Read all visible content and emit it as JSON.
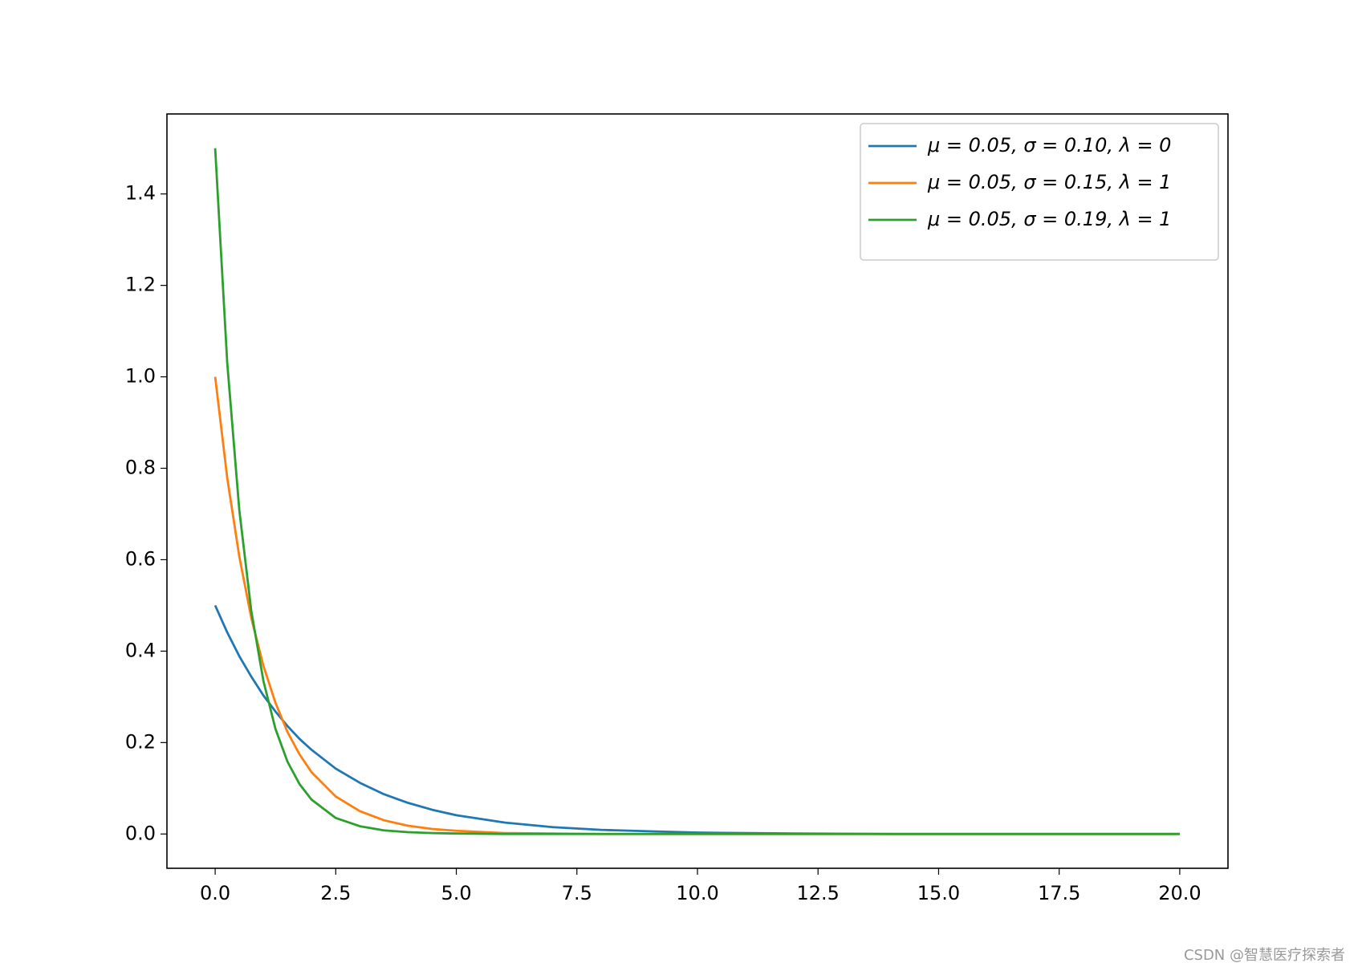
{
  "chart_data": {
    "type": "line",
    "x": [
      0,
      0.25,
      0.5,
      0.75,
      1,
      1.25,
      1.5,
      1.75,
      2,
      2.5,
      3,
      3.5,
      4,
      4.5,
      5,
      6,
      7,
      8,
      9,
      10,
      12,
      14,
      16,
      18,
      20
    ],
    "series": [
      {
        "name": "μ = 0.05,  σ = 0.10,  λ = 0",
        "color": "#1f77b4",
        "values": [
          0.5,
          0.441,
          0.389,
          0.344,
          0.303,
          0.268,
          0.236,
          0.208,
          0.184,
          0.143,
          0.112,
          0.087,
          0.068,
          0.053,
          0.041,
          0.025,
          0.015,
          0.009,
          0.006,
          0.003,
          0.001,
          0,
          0,
          0,
          0
        ]
      },
      {
        "name": "μ = 0.05,  σ = 0.15,  λ = 1",
        "color": "#ff7f0e",
        "values": [
          1,
          0.779,
          0.607,
          0.472,
          0.368,
          0.287,
          0.223,
          0.174,
          0.135,
          0.082,
          0.05,
          0.03,
          0.018,
          0.011,
          0.007,
          0.002,
          0.001,
          0,
          0,
          0,
          0,
          0,
          0,
          0,
          0
        ]
      },
      {
        "name": "μ = 0.05,  σ = 0.19,  λ = 1",
        "color": "#2ca02c",
        "values": [
          1.5,
          1.031,
          0.709,
          0.487,
          0.335,
          0.23,
          0.158,
          0.109,
          0.075,
          0.035,
          0.017,
          0.008,
          0.004,
          0.002,
          0.001,
          0,
          0,
          0,
          0,
          0,
          0,
          0,
          0,
          0,
          0
        ]
      }
    ],
    "xlim": [
      -1,
      21
    ],
    "ylim": [
      -0.075,
      1.575
    ],
    "xticks": [
      {
        "value": 0,
        "label": "0.0"
      },
      {
        "value": 2.5,
        "label": "2.5"
      },
      {
        "value": 5,
        "label": "5.0"
      },
      {
        "value": 7.5,
        "label": "7.5"
      },
      {
        "value": 10,
        "label": "10.0"
      },
      {
        "value": 12.5,
        "label": "12.5"
      },
      {
        "value": 15,
        "label": "15.0"
      },
      {
        "value": 17.5,
        "label": "17.5"
      },
      {
        "value": 20,
        "label": "20.0"
      }
    ],
    "yticks": [
      {
        "value": 0,
        "label": "0.0"
      },
      {
        "value": 0.2,
        "label": "0.2"
      },
      {
        "value": 0.4,
        "label": "0.4"
      },
      {
        "value": 0.6,
        "label": "0.6"
      },
      {
        "value": 0.8,
        "label": "0.8"
      },
      {
        "value": 1.0,
        "label": "1.0"
      },
      {
        "value": 1.2,
        "label": "1.2"
      },
      {
        "value": 1.4,
        "label": "1.4"
      }
    ],
    "legend": "upper right",
    "grid": false
  },
  "watermark": "CSDN @智慧医疗探索者"
}
